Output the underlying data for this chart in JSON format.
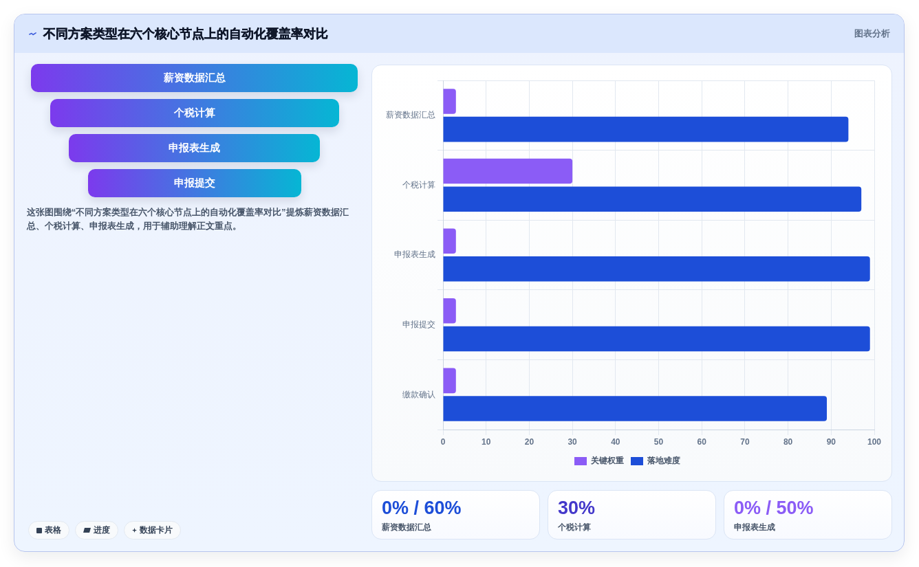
{
  "chart_data": [
    {
      "type": "other",
      "title": "不同方案类型在六个核心节点上的自动化覆盖率对比",
      "annotations": [
        "图表分析"
      ]
    },
    {
      "type": "other",
      "categories": [
        "薪资数据汇总",
        "个税计算",
        "申报表生成",
        "申报提交"
      ],
      "subtitle": "这张图围绕“不同方案类型在六个核心节点上的自动化覆盖率对比”提炼薪资数据汇总、个税计算、申报表生成，用于辅助理解正文重点。",
      "annotations": [
        "表格",
        "进度",
        "数据卡片"
      ]
    },
    {
      "type": "bar",
      "orientation": "horizontal",
      "categories": [
        "薪资数据汇总",
        "个税计算",
        "申报表生成",
        "申报提交",
        "缴款确认"
      ],
      "series": [
        {
          "name": "关键权重",
          "color": "#8b5cf6",
          "values": [
            3,
            30,
            3,
            3,
            3
          ]
        },
        {
          "name": "落地难度",
          "color": "#1d4ed8",
          "values": [
            94,
            97,
            99,
            99,
            89
          ]
        }
      ],
      "xlim": [
        0,
        100
      ],
      "xticks": [
        0,
        10,
        20,
        30,
        40,
        50,
        60,
        70,
        80,
        90,
        100
      ],
      "grid": true,
      "legend": "bottom"
    },
    {
      "type": "other",
      "categories": [
        "薪资数据汇总",
        "个税计算",
        "申报表生成"
      ],
      "value_labels": [
        "0% / 60%",
        "30%",
        "0% / 50%"
      ]
    }
  ]
}
